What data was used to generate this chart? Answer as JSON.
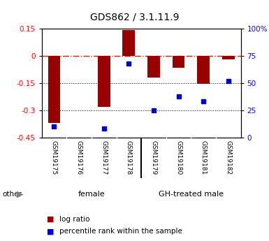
{
  "title": "GDS862 / 3.1.11.9",
  "samples": [
    "GSM19175",
    "GSM19176",
    "GSM19177",
    "GSM19178",
    "GSM19179",
    "GSM19180",
    "GSM19181",
    "GSM19182"
  ],
  "log_ratios": [
    -0.37,
    0.0,
    -0.28,
    0.145,
    -0.12,
    -0.065,
    -0.155,
    -0.02
  ],
  "percentile_ranks": [
    10,
    -999,
    8,
    68,
    25,
    38,
    33,
    52
  ],
  "ylim_left": [
    -0.45,
    0.15
  ],
  "ylim_right": [
    0,
    100
  ],
  "yticks_left": [
    0.15,
    0.0,
    -0.15,
    -0.3,
    -0.45
  ],
  "yticks_right_vals": [
    100,
    75,
    50,
    25,
    0
  ],
  "yticks_right_labels": [
    "100%",
    "75",
    "50",
    "25",
    "0"
  ],
  "groups": [
    {
      "label": "female",
      "start": 0,
      "end": 4,
      "color": "#aaddaa"
    },
    {
      "label": "GH-treated male",
      "start": 4,
      "end": 8,
      "color": "#66cc66"
    }
  ],
  "bar_color": "#990000",
  "square_color": "#0000cc",
  "bar_width": 0.5,
  "dotted_lines": [
    -0.15,
    -0.3
  ],
  "background_color": "#ffffff",
  "label_log_ratio": "log ratio",
  "label_percentile": "percentile rank within the sample",
  "other_label": "other",
  "title_fontsize": 10,
  "tick_fontsize": 7.5,
  "sample_fontsize": 6.5,
  "group_fontsize": 8,
  "legend_fontsize": 7.5
}
